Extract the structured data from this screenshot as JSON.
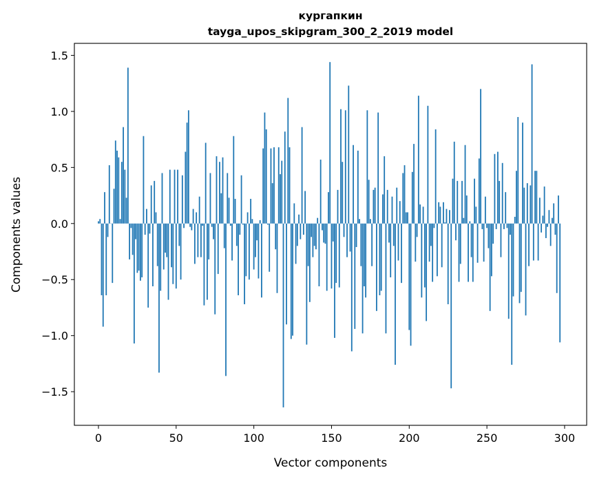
{
  "chart_data": {
    "type": "bar",
    "title": "кургапкин",
    "subtitle": "tayga_upos_skipgram_300_2_2019 model",
    "xlabel": "Vector components",
    "ylabel": "Components values",
    "xlim": [
      -15.5,
      314.2
    ],
    "ylim": [
      -1.8,
      1.607
    ],
    "xticks": [
      0,
      50,
      100,
      150,
      200,
      250,
      300
    ],
    "xtick_labels": [
      "0",
      "50",
      "100",
      "150",
      "200",
      "250",
      "300"
    ],
    "yticks": [
      -1.5,
      -1.0,
      -0.5,
      0.0,
      0.5,
      1.0,
      1.5
    ],
    "ytick_labels": [
      "−1.5",
      "−1.0",
      "−0.5",
      "0.0",
      "0.5",
      "1.0",
      "1.5"
    ],
    "grid": false,
    "color": "#1f77b4",
    "values": [
      0.02,
      0.04,
      -0.64,
      -0.92,
      0.28,
      -0.64,
      -0.12,
      0.52,
      0,
      -0.53,
      0.31,
      0.74,
      0.65,
      0.59,
      0.04,
      0.55,
      0.86,
      0.48,
      0.23,
      1.39,
      -0.32,
      -0.04,
      -0.28,
      -1.07,
      -0.14,
      -0.44,
      -0.42,
      -0.51,
      -0.48,
      0.78,
      -0.1,
      0.13,
      -0.75,
      -0.09,
      0.34,
      -0.56,
      0.38,
      0.1,
      -0.38,
      -1.33,
      -0.6,
      0.45,
      -0.41,
      -0.26,
      -0.3,
      -0.68,
      0.48,
      -0.39,
      -0.54,
      0.48,
      -0.58,
      0.48,
      -0.2,
      -0.5,
      0.43,
      -0.04,
      0.64,
      0.9,
      1.01,
      -0.03,
      -0.06,
      0.13,
      -0.36,
      0.1,
      -0.3,
      0.24,
      -0.3,
      -0.02,
      -0.73,
      0.72,
      -0.68,
      -0.32,
      0.45,
      -0.03,
      -0.14,
      -0.81,
      0.6,
      -0.45,
      0.55,
      0.27,
      0.59,
      -0.22,
      -1.36,
      0.45,
      0.23,
      -0.02,
      -0.33,
      0.78,
      0.22,
      -0.2,
      -0.64,
      -0.1,
      0.43,
      -0.01,
      -0.72,
      -0.47,
      0.1,
      -0.5,
      0.22,
      0.04,
      -0.41,
      -0.3,
      -0.15,
      -0.49,
      0.03,
      -0.66,
      0.67,
      0.99,
      0.84,
      -0.01,
      -0.43,
      0.67,
      0.36,
      0.68,
      -0.23,
      -0.62,
      0.68,
      0.44,
      0.56,
      -1.64,
      0.82,
      -0.9,
      1.12,
      0.68,
      -1.03,
      -1.0,
      0.18,
      -0.36,
      -0.2,
      0.08,
      -0.14,
      0.86,
      -0.1,
      0.29,
      -1.08,
      -0.38,
      -0.7,
      -0.12,
      -0.3,
      -0.2,
      -0.23,
      0.05,
      -0.56,
      0.57,
      -0.06,
      -0.17,
      -0.18,
      -0.6,
      0.28,
      1.44,
      -0.58,
      -0.16,
      -1.02,
      -0.53,
      0.3,
      -0.57,
      1.02,
      0.55,
      -0.12,
      1.01,
      -0.3,
      1.23,
      -0.25,
      -1.14,
      0.7,
      -0.94,
      -0.21,
      0.65,
      0.04,
      -0.38,
      -0.98,
      -0.56,
      -0.66,
      1.01,
      0.39,
      0.04,
      -0.38,
      0.3,
      0.32,
      -0.78,
      0.99,
      -0.64,
      -0.6,
      0.26,
      0.6,
      -0.98,
      0.3,
      -0.17,
      -0.48,
      0.24,
      -0.2,
      -1.26,
      0.32,
      -0.33,
      0.2,
      -0.53,
      0.45,
      0.52,
      0.1,
      0.1,
      -0.95,
      -1.09,
      0.46,
      0.71,
      -0.34,
      -0.12,
      1.14,
      0.17,
      -0.66,
      0.15,
      -0.57,
      -0.87,
      1.05,
      -0.34,
      -0.2,
      -0.52,
      -0.04,
      0.84,
      -0.47,
      0.19,
      0.15,
      -0.39,
      0.19,
      0.01,
      0.13,
      -0.72,
      0.12,
      -1.47,
      0.4,
      0.73,
      -0.15,
      0.38,
      -0.52,
      -0.36,
      0.38,
      0.05,
      0.7,
      0.25,
      -0.52,
      0.02,
      -0.3,
      -0.52,
      0.4,
      0.15,
      -0.35,
      0.58,
      1.2,
      -0.05,
      -0.34,
      0.24,
      -0.04,
      -0.22,
      -0.78,
      -0.47,
      -0.18,
      0.62,
      -0.05,
      0.64,
      0.38,
      -0.3,
      0.54,
      -0.05,
      0.28,
      -0.04,
      -0.85,
      -0.1,
      -1.26,
      -0.65,
      0.06,
      0.47,
      0.95,
      -0.71,
      -0.61,
      0.9,
      0.32,
      -0.82,
      0.36,
      -0.38,
      0.34,
      1.42,
      -0.33,
      0.47,
      0.47,
      -0.33,
      0.23,
      -0.08,
      0.07,
      0.33,
      -0.13,
      -0.03,
      0.12,
      -0.2,
      0.05,
      0.18,
      -0.1,
      -0.62,
      0.25,
      -1.06
    ]
  }
}
